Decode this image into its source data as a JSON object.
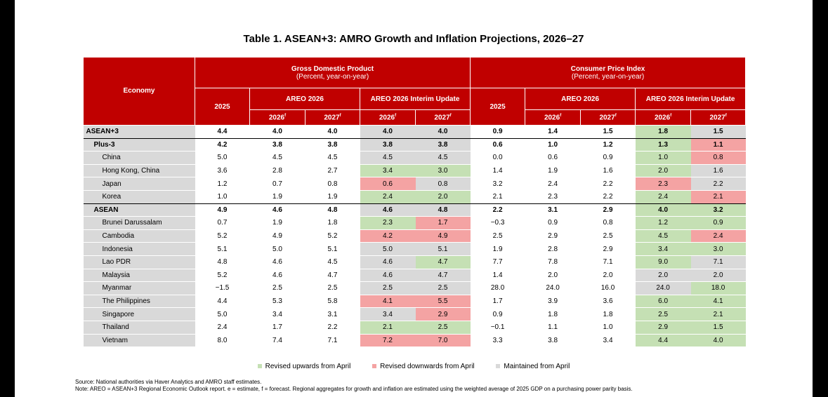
{
  "title": "Table 1. ASEAN+3: AMRO Growth and Inflation Projections, 2026–27",
  "header": {
    "economy": "Economy",
    "gdp_title": "Gross Domestic Product",
    "gdp_sub": "(Percent, year-on-year)",
    "cpi_title": "Consumer Price Index",
    "cpi_sub": "(Percent, year-on-year)",
    "y2025": "2025",
    "areo": "AREO 2026",
    "interim": "AREO 2026 Interim Update",
    "y2026": "2026",
    "y2027": "2027",
    "fmark": "f"
  },
  "rows": [
    {
      "name": "ASEAN+3",
      "level": 0,
      "v": [
        "4.4",
        "4.0",
        "4.0",
        "4.0",
        "4.0",
        "0.9",
        "1.4",
        "1.5",
        "1.8",
        "1.5"
      ],
      "s": [
        "same",
        "same",
        "up",
        "same"
      ]
    },
    {
      "name": "Plus-3",
      "level": 1,
      "v": [
        "4.2",
        "3.8",
        "3.8",
        "3.8",
        "3.8",
        "0.6",
        "1.0",
        "1.2",
        "1.3",
        "1.1"
      ],
      "s": [
        "same",
        "same",
        "up",
        "down"
      ]
    },
    {
      "name": "China",
      "level": 2,
      "v": [
        "5.0",
        "4.5",
        "4.5",
        "4.5",
        "4.5",
        "0.0",
        "0.6",
        "0.9",
        "1.0",
        "0.8"
      ],
      "s": [
        "same",
        "same",
        "up",
        "down"
      ]
    },
    {
      "name": "Hong Kong, China",
      "level": 2,
      "v": [
        "3.6",
        "2.8",
        "2.7",
        "3.4",
        "3.0",
        "1.4",
        "1.9",
        "1.6",
        "2.0",
        "1.6"
      ],
      "s": [
        "up",
        "up",
        "up",
        "same"
      ]
    },
    {
      "name": "Japan",
      "level": 2,
      "v": [
        "1.2",
        "0.7",
        "0.8",
        "0.6",
        "0.8",
        "3.2",
        "2.4",
        "2.2",
        "2.3",
        "2.2"
      ],
      "s": [
        "down",
        "same",
        "down",
        "same"
      ]
    },
    {
      "name": "Korea",
      "level": 2,
      "v": [
        "1.0",
        "1.9",
        "1.9",
        "2.4",
        "2.0",
        "2.1",
        "2.3",
        "2.2",
        "2.4",
        "2.1"
      ],
      "s": [
        "up",
        "up",
        "up",
        "down"
      ]
    },
    {
      "name": "ASEAN",
      "level": 1,
      "v": [
        "4.9",
        "4.6",
        "4.8",
        "4.6",
        "4.8",
        "2.2",
        "3.1",
        "2.9",
        "4.0",
        "3.2"
      ],
      "s": [
        "same",
        "same",
        "up",
        "up"
      ]
    },
    {
      "name": "Brunei Darussalam",
      "level": 2,
      "v": [
        "0.7",
        "1.9",
        "1.8",
        "2.3",
        "1.7",
        "−0.3",
        "0.9",
        "0.8",
        "1.2",
        "0.9"
      ],
      "s": [
        "up",
        "down",
        "up",
        "up"
      ]
    },
    {
      "name": "Cambodia",
      "level": 2,
      "v": [
        "5.2",
        "4.9",
        "5.2",
        "4.2",
        "4.9",
        "2.5",
        "2.9",
        "2.5",
        "4.5",
        "2.4"
      ],
      "s": [
        "down",
        "down",
        "up",
        "down"
      ]
    },
    {
      "name": "Indonesia",
      "level": 2,
      "v": [
        "5.1",
        "5.0",
        "5.1",
        "5.0",
        "5.1",
        "1.9",
        "2.8",
        "2.9",
        "3.4",
        "3.0"
      ],
      "s": [
        "same",
        "same",
        "up",
        "up"
      ]
    },
    {
      "name": "Lao PDR",
      "level": 2,
      "v": [
        "4.8",
        "4.6",
        "4.5",
        "4.6",
        "4.7",
        "7.7",
        "7.8",
        "7.1",
        "9.0",
        "7.1"
      ],
      "s": [
        "same",
        "up",
        "up",
        "same"
      ]
    },
    {
      "name": "Malaysia",
      "level": 2,
      "v": [
        "5.2",
        "4.6",
        "4.7",
        "4.6",
        "4.7",
        "1.4",
        "2.0",
        "2.0",
        "2.0",
        "2.0"
      ],
      "s": [
        "same",
        "same",
        "same",
        "same"
      ]
    },
    {
      "name": "Myanmar",
      "level": 2,
      "v": [
        "−1.5",
        "2.5",
        "2.5",
        "2.5",
        "2.5",
        "28.0",
        "24.0",
        "16.0",
        "24.0",
        "18.0"
      ],
      "s": [
        "same",
        "same",
        "same",
        "up"
      ]
    },
    {
      "name": "The Philippines",
      "level": 2,
      "v": [
        "4.4",
        "5.3",
        "5.8",
        "4.1",
        "5.5",
        "1.7",
        "3.9",
        "3.6",
        "6.0",
        "4.1"
      ],
      "s": [
        "down",
        "down",
        "up",
        "up"
      ]
    },
    {
      "name": "Singapore",
      "level": 2,
      "v": [
        "5.0",
        "3.4",
        "3.1",
        "3.4",
        "2.9",
        "0.9",
        "1.8",
        "1.8",
        "2.5",
        "2.1"
      ],
      "s": [
        "same",
        "down",
        "up",
        "up"
      ]
    },
    {
      "name": "Thailand",
      "level": 2,
      "v": [
        "2.4",
        "1.7",
        "2.2",
        "2.1",
        "2.5",
        "−0.1",
        "1.1",
        "1.0",
        "2.9",
        "1.5"
      ],
      "s": [
        "up",
        "up",
        "up",
        "up"
      ]
    },
    {
      "name": "Vietnam",
      "level": 2,
      "v": [
        "8.0",
        "7.4",
        "7.1",
        "7.2",
        "7.0",
        "3.3",
        "3.8",
        "3.4",
        "4.4",
        "4.0"
      ],
      "s": [
        "down",
        "down",
        "up",
        "up"
      ]
    }
  ],
  "legend": {
    "up": "Revised upwards from April",
    "down": "Revised downwards from April",
    "same": "Maintained from April",
    "colors": {
      "up": "#c5e0b4",
      "down": "#f4a3a3",
      "same": "#d9d9d9"
    }
  },
  "notes": {
    "source": "Source: National authorities via Haver Analytics and AMRO staff estimates.",
    "note": "Note: AREO = ASEAN+3 Regional Economic Outlook report. e = estimate, f = forecast. Regional aggregates for growth and inflation are estimated using the weighted average of 2025 GDP on a purchasing power parity basis."
  },
  "colors": {
    "header": "#c00000"
  }
}
